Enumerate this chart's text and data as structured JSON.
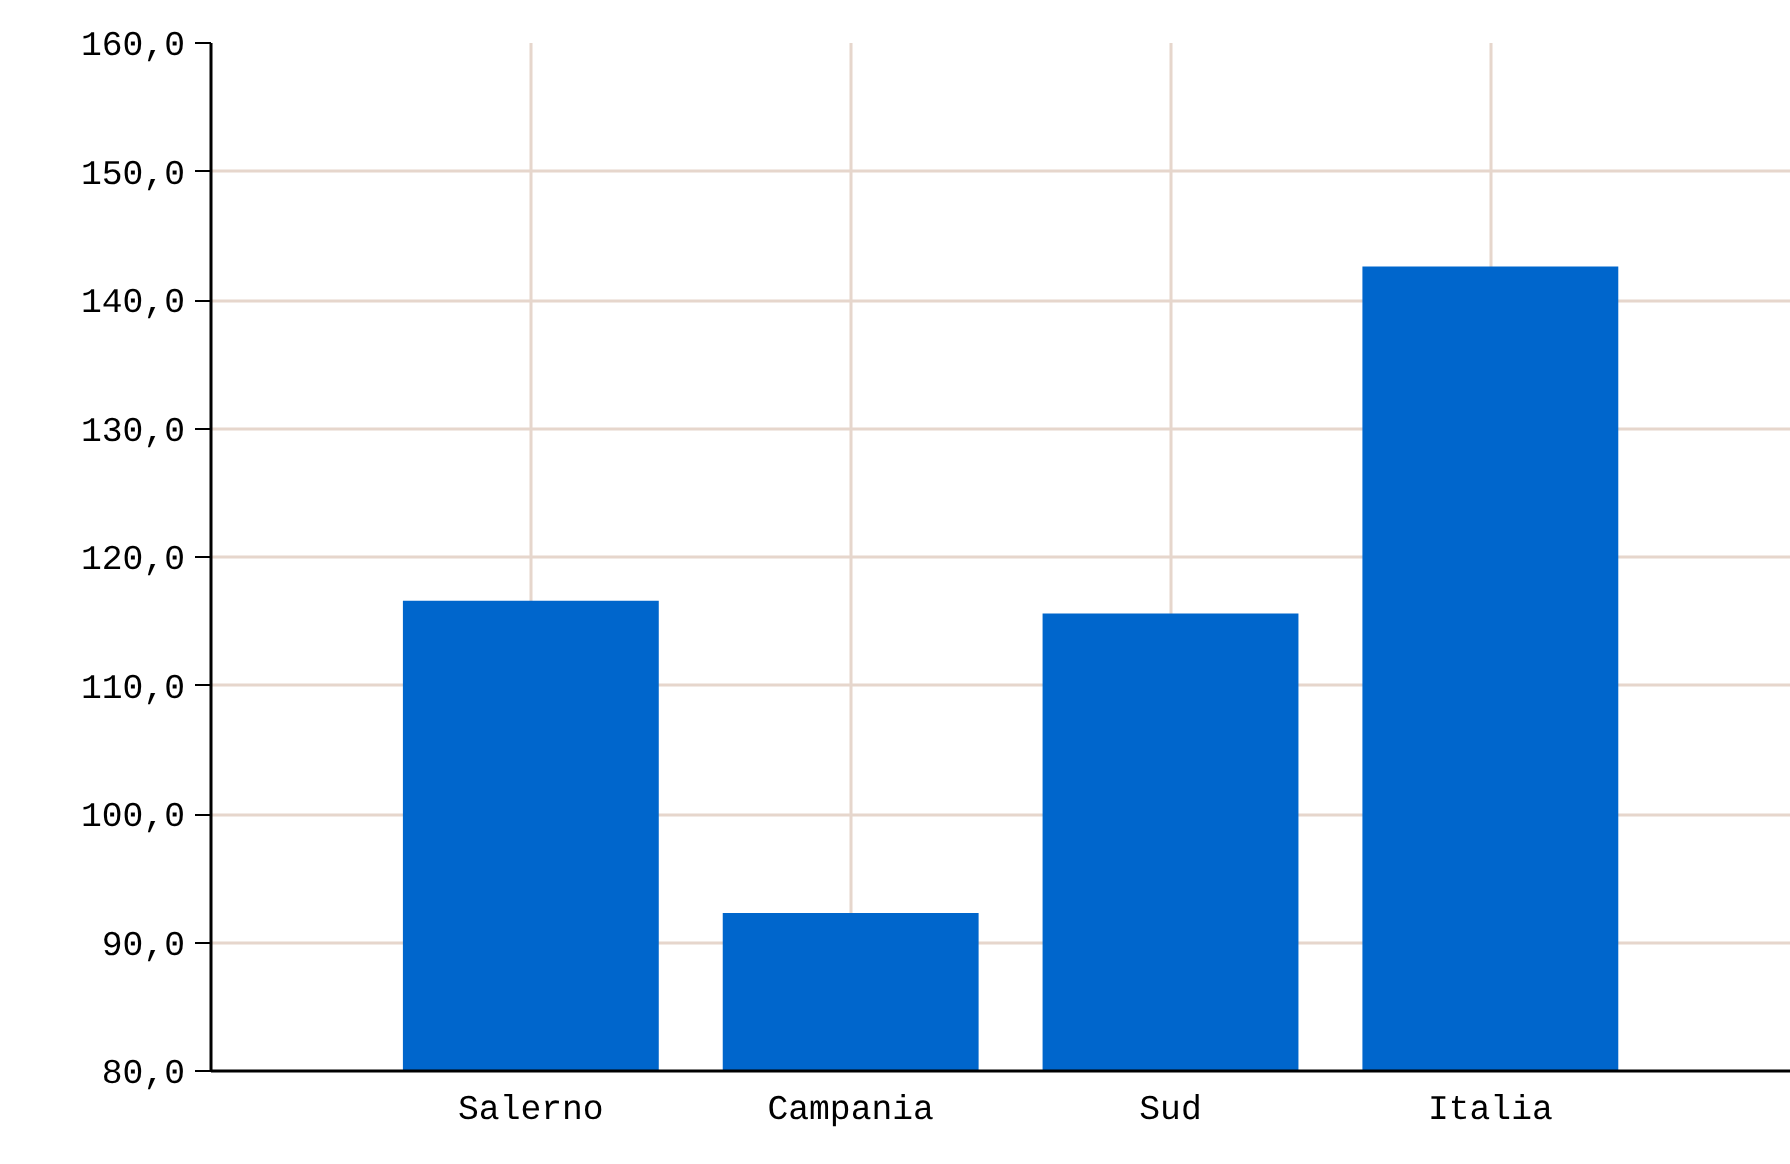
{
  "chart_data": {
    "type": "bar",
    "categories": [
      "Salerno",
      "Campania",
      "Sud",
      "Italia"
    ],
    "values": [
      116.6,
      92.3,
      115.6,
      142.6
    ],
    "color": "#0066cc",
    "ylim": [
      80,
      160
    ],
    "yticks": [
      {
        "value": 80,
        "label": "80,0"
      },
      {
        "value": 90,
        "label": "90,0"
      },
      {
        "value": 100,
        "label": "100,0"
      },
      {
        "value": 110,
        "label": "110,0"
      },
      {
        "value": 120,
        "label": "120,0"
      },
      {
        "value": 130,
        "label": "130,0"
      },
      {
        "value": 140,
        "label": "140,0"
      },
      {
        "value": 150,
        "label": "150,0"
      },
      {
        "value": 160,
        "label": "160,0"
      }
    ],
    "grid": true
  }
}
